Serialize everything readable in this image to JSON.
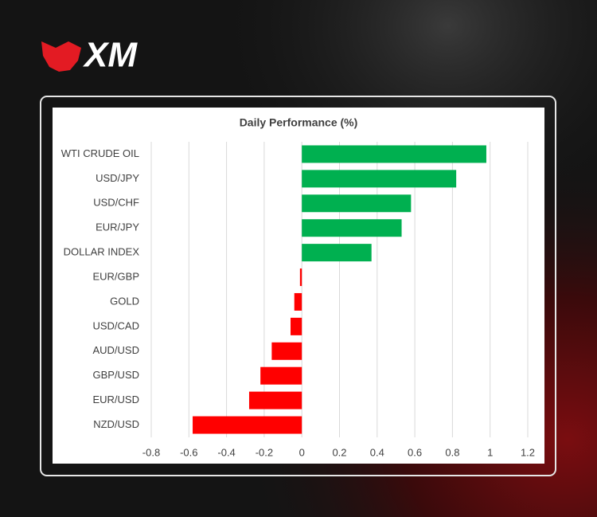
{
  "logo": "XM",
  "chart_data": {
    "type": "hbar",
    "title": "Daily Performance (%)",
    "categories": [
      "WTI CRUDE OIL",
      "USD/JPY",
      "USD/CHF",
      "EUR/JPY",
      "DOLLAR INDEX",
      "EUR/GBP",
      "GOLD",
      "USD/CAD",
      "AUD/USD",
      "GBP/USD",
      "EUR/USD",
      "NZD/USD"
    ],
    "values": [
      0.98,
      0.82,
      0.58,
      0.53,
      0.37,
      -0.01,
      -0.04,
      -0.06,
      -0.16,
      -0.22,
      -0.28,
      -0.58
    ],
    "color_positive": "#00b050",
    "color_negative": "#ff0000",
    "xlim": [
      -0.8,
      1.2
    ],
    "xticks": [
      -0.8,
      -0.6,
      -0.4,
      -0.2,
      0,
      0.2,
      0.4,
      0.6,
      0.8,
      1,
      1.2
    ],
    "grid": true
  }
}
